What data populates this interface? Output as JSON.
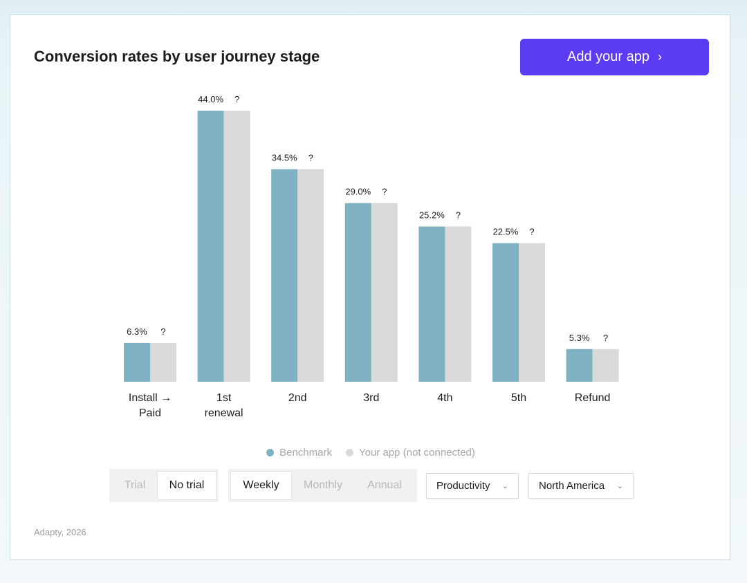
{
  "header": {
    "title": "Conversion rates by user journey stage",
    "add_button_label": "Add your app",
    "add_button_chevron": "›"
  },
  "chart_data": {
    "type": "bar",
    "title": "Conversion rates by user journey stage",
    "categories": [
      [
        "Install →",
        "Paid"
      ],
      [
        "1st",
        "renewal"
      ],
      [
        "2nd"
      ],
      [
        "3rd"
      ],
      [
        "4th"
      ],
      [
        "5th"
      ],
      [
        "Refund"
      ]
    ],
    "series": [
      {
        "name": "Benchmark",
        "values": [
          6.3,
          44.0,
          34.5,
          29.0,
          25.2,
          22.5,
          5.3
        ],
        "labels": [
          "6.3%",
          "44.0%",
          "34.5%",
          "29.0%",
          "25.2%",
          "22.5%",
          "5.3%"
        ],
        "color": "#7fb3c3"
      },
      {
        "name": "Your app (not connected)",
        "values": [
          6.3,
          44.0,
          34.5,
          29.0,
          25.2,
          22.5,
          5.3
        ],
        "labels": [
          "?",
          "?",
          "?",
          "?",
          "?",
          "?",
          "?"
        ],
        "color": "#d9d9d9"
      }
    ],
    "ylim": [
      0,
      44.0
    ],
    "xlabel": "",
    "ylabel": "",
    "grid": false
  },
  "legend": {
    "benchmark_label": "Benchmark",
    "your_app_label": "Your app (not connected)",
    "benchmark_color": "#7fb3c3",
    "your_app_color": "#d9d9d9"
  },
  "controls": {
    "trial_options": [
      "Trial",
      "No trial"
    ],
    "trial_selected": "No trial",
    "period_options": [
      "Weekly",
      "Monthly",
      "Annual"
    ],
    "period_selected": "Weekly",
    "category_value": "Productivity",
    "region_value": "North America"
  },
  "footer": {
    "text": "Adapty, 2026"
  }
}
